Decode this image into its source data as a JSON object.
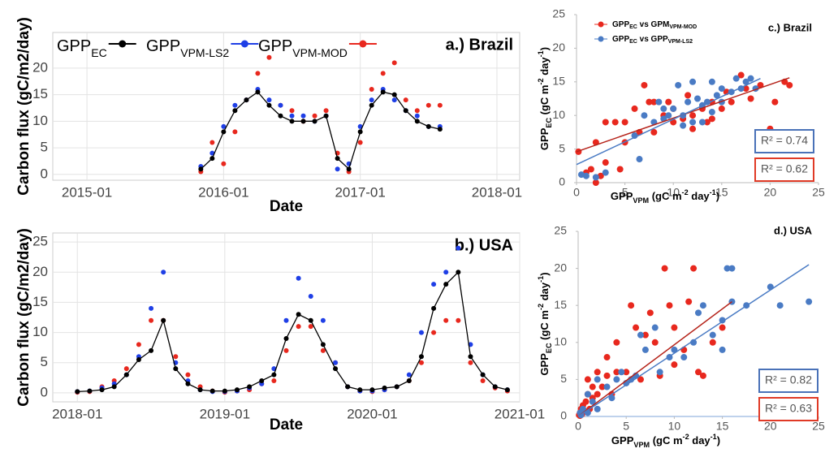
{
  "chart_data": [
    {
      "type": "line",
      "title": "a.) Brazil",
      "xlabel": "Date",
      "ylabel": "Carbon flux (gC/m2/day)",
      "x": [
        "2015-11",
        "2015-12",
        "2016-01",
        "2016-02",
        "2016-03",
        "2016-04",
        "2016-05",
        "2016-06",
        "2016-07",
        "2016-08",
        "2016-09",
        "2016-10",
        "2016-11",
        "2016-12",
        "2017-01",
        "2017-02",
        "2017-03",
        "2017-04",
        "2017-05",
        "2017-06",
        "2017-07",
        "2017-08"
      ],
      "series": [
        {
          "name_parts": [
            {
              "text": "GPP"
            },
            {
              "text": "EC",
              "style": "sub"
            }
          ],
          "color": "#000000",
          "line": true,
          "values": [
            1,
            3,
            8,
            12,
            14,
            15.5,
            13,
            11,
            10,
            10,
            10,
            11,
            3,
            1,
            8,
            13,
            15.5,
            15,
            12,
            10,
            9,
            8.5
          ]
        },
        {
          "name_parts": [
            {
              "text": "GPP"
            },
            {
              "text": "VPM-LS2",
              "style": "sub"
            }
          ],
          "color": "#1f3fe6",
          "line": false,
          "values": [
            1.5,
            4,
            9,
            13,
            14,
            16,
            14,
            13,
            11,
            11,
            10,
            11,
            1,
            2,
            9,
            14,
            16,
            14,
            12,
            11,
            9,
            9
          ]
        },
        {
          "name_parts": [
            {
              "text": "GPP"
            },
            {
              "text": "VPM-MOD",
              "style": "sub"
            }
          ],
          "color": "#e8281e",
          "line": false,
          "values": [
            0.5,
            6,
            2,
            8,
            14,
            19,
            22,
            13,
            12,
            10,
            11,
            12,
            4,
            0.5,
            6,
            16,
            19,
            21,
            14,
            12,
            13,
            13
          ]
        }
      ],
      "xlim": [
        "2014-10",
        "2018-03"
      ],
      "xticks": [
        "2015-01",
        "2016-01",
        "2017-01",
        "2018-01"
      ],
      "ylim": [
        -1.1,
        26.7
      ],
      "yticks": [
        0,
        5,
        10,
        15,
        20
      ],
      "grid": true,
      "legend": "top"
    },
    {
      "type": "line",
      "title": "b.) USA",
      "xlabel": "Date",
      "ylabel": "Carbon flux (gC/m2/day)",
      "x": [
        "2018-01",
        "2018-02",
        "2018-03",
        "2018-04",
        "2018-05",
        "2018-06",
        "2018-07",
        "2018-08",
        "2018-09",
        "2018-10",
        "2018-11",
        "2018-12",
        "2019-01",
        "2019-02",
        "2019-03",
        "2019-04",
        "2019-05",
        "2019-06",
        "2019-07",
        "2019-08",
        "2019-09",
        "2019-10",
        "2019-11",
        "2019-12",
        "2020-01",
        "2020-02",
        "2020-03",
        "2020-04",
        "2020-05",
        "2020-06",
        "2020-07",
        "2020-08",
        "2020-09",
        "2020-10",
        "2020-11",
        "2020-12"
      ],
      "series": [
        {
          "color": "#000000",
          "line": true,
          "values": [
            0.2,
            0.3,
            0.5,
            1,
            3,
            5.5,
            7,
            12,
            4,
            1.5,
            0.5,
            0.3,
            0.3,
            0.5,
            1,
            2,
            3,
            9,
            13,
            12,
            8,
            4,
            1,
            0.5,
            0.5,
            0.8,
            1,
            2,
            6,
            14,
            18,
            20,
            6,
            3,
            1,
            0.5
          ]
        },
        {
          "color": "#1f3fe6",
          "line": false,
          "values": [
            0.2,
            0.3,
            0.8,
            1.5,
            3,
            6,
            14,
            20,
            5,
            2,
            0.5,
            0.2,
            0.2,
            0.3,
            0.8,
            1.5,
            4,
            12,
            19,
            16,
            12,
            5,
            1,
            0.3,
            0.3,
            0.5,
            1,
            3,
            10,
            18,
            20,
            24,
            8,
            3,
            1,
            0.5
          ]
        },
        {
          "color": "#e8281e",
          "line": false,
          "values": [
            0.1,
            0.2,
            1,
            2,
            4,
            8,
            12,
            12,
            6,
            3,
            1,
            0.3,
            0.1,
            0.3,
            0.5,
            1.5,
            2,
            7,
            11,
            11,
            7,
            5,
            1,
            0.3,
            0.2,
            0.5,
            1,
            2,
            5,
            10,
            12,
            12,
            5,
            2,
            0.8,
            0.3
          ]
        }
      ],
      "xlim": [
        "2017-11",
        "2021-01"
      ],
      "xticks": [
        "2018-01",
        "2019-01",
        "2020-01",
        "2021-01"
      ],
      "ylim": [
        -1.5,
        26.5
      ],
      "yticks": [
        0,
        5,
        10,
        15,
        20,
        25
      ],
      "grid": true
    },
    {
      "type": "scatter",
      "title": "c.) Brazil",
      "xlabel_parts": [
        {
          "text": "GPP"
        },
        {
          "text": "VPM",
          "style": "sub"
        },
        {
          "text": " (gC m"
        },
        {
          "text": "-2",
          "style": "sup"
        },
        {
          "text": " day"
        },
        {
          "text": "-1",
          "style": "sup"
        },
        {
          "text": ")"
        }
      ],
      "ylabel_parts": [
        {
          "text": "GPP"
        },
        {
          "text": "EC",
          "style": "sub"
        },
        {
          "text": " (gC m"
        },
        {
          "text": "-2",
          "style": "sup"
        },
        {
          "text": " day"
        },
        {
          "text": "-1",
          "style": "sup"
        },
        {
          "text": ")"
        }
      ],
      "series": [
        {
          "name_parts": [
            {
              "text": "GPP"
            },
            {
              "text": "EC",
              "style": "sub"
            },
            {
              "text": " vs GPM"
            },
            {
              "text": "VPM-MOD",
              "style": "sub"
            }
          ],
          "color": "#e8281e",
          "x": [
            0.2,
            1,
            1.5,
            2,
            2.5,
            3,
            3,
            4,
            5,
            5,
            6,
            6.5,
            7,
            7.5,
            8,
            8,
            9,
            9.5,
            10,
            10,
            11,
            11.5,
            12,
            12,
            13,
            13.5,
            14,
            14,
            15,
            15.5,
            16,
            17,
            17.5,
            18,
            19,
            20,
            20.5,
            21.5,
            22,
            4.5,
            2
          ],
          "values": [
            4.6,
            1.5,
            2,
            6,
            1,
            3,
            9,
            9,
            9,
            6,
            11,
            7.5,
            14.5,
            12,
            12,
            7.5,
            10,
            12,
            9,
            11,
            9.5,
            13,
            10,
            8,
            11,
            9,
            12,
            9.5,
            11,
            13.5,
            12,
            16,
            14,
            12.5,
            14.5,
            8,
            12,
            15,
            14.5,
            2,
            0
          ],
          "trend": {
            "x": [
              0,
              22
            ],
            "y": [
              4.6,
              15.6
            ]
          },
          "trend_color": "#b5231a"
        },
        {
          "name_parts": [
            {
              "text": "GPP"
            },
            {
              "text": "EC",
              "style": "sub"
            },
            {
              "text": " vs GPP"
            },
            {
              "text": "VPM-LS2",
              "style": "sub"
            }
          ],
          "color": "#4a7bc4",
          "x": [
            0.5,
            1,
            2,
            3,
            6,
            6.5,
            7,
            8,
            8.5,
            9,
            9.5,
            10,
            10.5,
            11,
            11.5,
            12,
            12.5,
            13,
            13,
            13.5,
            14,
            14.5,
            15,
            15,
            16,
            16.5,
            17,
            17.5,
            18,
            18.5,
            12,
            14,
            11,
            9
          ],
          "values": [
            1.2,
            1,
            0.8,
            1.5,
            7,
            3.5,
            10,
            9,
            12,
            9.5,
            10,
            11,
            14.5,
            10,
            12,
            9,
            12.5,
            11.5,
            9,
            12,
            10.5,
            13,
            12,
            14,
            13.5,
            15.5,
            14,
            15,
            15.5,
            14,
            15,
            15,
            8.5,
            11
          ],
          "trend": {
            "x": [
              0,
              19
            ],
            "y": [
              2.7,
              15.5
            ]
          },
          "trend_color": "#4a7bc4"
        }
      ],
      "annotations": [
        {
          "text": "R² = 0.74",
          "color": "#4a72b8"
        },
        {
          "text": "R² = 0.62",
          "color": "#e03a26"
        }
      ],
      "xlim": [
        0,
        25
      ],
      "xticks": [
        0,
        5,
        10,
        15,
        20,
        25
      ],
      "ylim": [
        0,
        25
      ],
      "yticks": [
        0,
        5,
        10,
        15,
        20,
        25
      ],
      "legend": "upper left"
    },
    {
      "type": "scatter",
      "title": "d.) USA",
      "xlabel_parts": [
        {
          "text": "GPP"
        },
        {
          "text": "VPM",
          "style": "sub"
        },
        {
          "text": " (gC m"
        },
        {
          "text": "-2",
          "style": "sup"
        },
        {
          "text": " day"
        },
        {
          "text": "-1",
          "style": "sup"
        },
        {
          "text": ")"
        }
      ],
      "ylabel_parts": [
        {
          "text": "GPP"
        },
        {
          "text": "EC",
          "style": "sub"
        },
        {
          "text": " (gC m"
        },
        {
          "text": "-2",
          "style": "sup"
        },
        {
          "text": " day"
        },
        {
          "text": "-1",
          "style": "sup"
        },
        {
          "text": ")"
        }
      ],
      "series": [
        {
          "color": "#e8281e",
          "x": [
            0.1,
            0.2,
            0.3,
            0.5,
            0.4,
            0.8,
            1,
            1,
            1.2,
            1.5,
            1.5,
            2,
            2,
            2.5,
            3,
            3,
            3.5,
            4,
            4,
            5,
            5.5,
            6,
            6.5,
            7,
            7.5,
            8,
            8.5,
            9,
            9.5,
            10,
            10,
            11,
            11.5,
            12,
            12.5,
            13,
            14,
            15,
            0.6,
            0.2
          ],
          "values": [
            0.2,
            0.5,
            1,
            1.5,
            0.3,
            2,
            3,
            5,
            1,
            4,
            2.5,
            3,
            6,
            4,
            5.5,
            8,
            3,
            6,
            10,
            6,
            15,
            12,
            5,
            11,
            14,
            10,
            5.5,
            20,
            15,
            7,
            12,
            9,
            15.5,
            20,
            6,
            5.5,
            10,
            12,
            0.8,
            0.1
          ],
          "trend": {
            "x": [
              0,
              16
            ],
            "y": [
              0,
              15.5
            ]
          },
          "trend_color": "#b5231a"
        },
        {
          "color": "#4a7bc4",
          "x": [
            0.2,
            0.5,
            1,
            1.5,
            2,
            2,
            3,
            3.5,
            4,
            4.5,
            5,
            5.5,
            6,
            6.5,
            7,
            8,
            8.5,
            9.5,
            10,
            11,
            12,
            12.5,
            13,
            14,
            15,
            15.5,
            16,
            15,
            16,
            17.5,
            20,
            21,
            24,
            1,
            0.3
          ],
          "values": [
            0.5,
            1,
            0.5,
            2,
            1,
            5,
            4,
            2.5,
            5,
            6,
            4.5,
            5,
            5.5,
            11,
            9,
            12,
            6,
            8,
            9,
            8,
            10,
            14,
            15,
            11,
            13,
            20,
            20,
            9,
            15.5,
            15,
            17.5,
            15,
            15.5,
            3,
            0.2
          ],
          "trend": {
            "x": [
              0,
              24
            ],
            "y": [
              0,
              20.5
            ]
          },
          "trend_color": "#4a7bc4"
        }
      ],
      "annotations": [
        {
          "text": "R² = 0.82",
          "color": "#4a72b8"
        },
        {
          "text": "R² = 0.63",
          "color": "#e03a26"
        }
      ],
      "xlim": [
        0,
        25
      ],
      "xticks": [
        0,
        5,
        10,
        15,
        20,
        25
      ],
      "ylim": [
        0,
        25
      ],
      "yticks": [
        0,
        5,
        10,
        15,
        20,
        25
      ]
    }
  ]
}
